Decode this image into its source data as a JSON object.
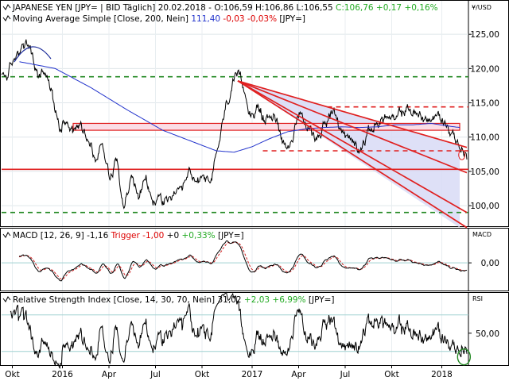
{
  "chart_data": {
    "type": "line",
    "currency_label": "¥/USD",
    "x_ticks": [
      "Okt",
      "2016",
      "Apr",
      "Jul",
      "Okt",
      "2017",
      "Apr",
      "Jul",
      "Okt",
      "2018"
    ],
    "price": {
      "title_parts": [
        {
          "text": "JAPANESE YEN [JPY= | BID Täglich] 20.02.2018 - O:106,59 H:106,86 L:106,55 ",
          "color": "#000000"
        },
        {
          "text": "C:106,76 +0,17 +0,16%",
          "color": "#22aa22"
        }
      ],
      "sma_parts": [
        {
          "text": "Moving Average Simple [Close, 200, Nein] ",
          "color": "#000000"
        },
        {
          "text": "111,40 ",
          "color": "#2233cc"
        },
        {
          "text": "-0,03 -0,03%",
          "color": "#dd0000"
        },
        {
          "text": " [JPY=]",
          "color": "#000000"
        }
      ],
      "ylim": [
        97,
        130
      ],
      "y_ticks": [
        100,
        105,
        110,
        115,
        120,
        125
      ],
      "y_tick_labels": [
        "100,00",
        "105,00",
        "110,00",
        "115,00",
        "120,00",
        "125,00"
      ],
      "anchors": [
        [
          0,
          118.8
        ],
        [
          2,
          119.3
        ],
        [
          4,
          121.8
        ],
        [
          6,
          123.6
        ],
        [
          8,
          122.8
        ],
        [
          10,
          118.8
        ],
        [
          12,
          119.8
        ],
        [
          14,
          116.2
        ],
        [
          16,
          111.6
        ],
        [
          18,
          113.0
        ],
        [
          20,
          111.0
        ],
        [
          22,
          112.0
        ],
        [
          24,
          110.2
        ],
        [
          26,
          106.5
        ],
        [
          28,
          109.0
        ],
        [
          30,
          104.5
        ],
        [
          32,
          106.8
        ],
        [
          34,
          100.2
        ],
        [
          36,
          104.0
        ],
        [
          38,
          101.5
        ],
        [
          40,
          103.5
        ],
        [
          42,
          100.2
        ],
        [
          44,
          101.5
        ],
        [
          46,
          100.0
        ],
        [
          48,
          102.0
        ],
        [
          50,
          101.2
        ],
        [
          52,
          104.5
        ],
        [
          54,
          103.2
        ],
        [
          56,
          105.0
        ],
        [
          58,
          102.5
        ],
        [
          60,
          108.5
        ],
        [
          62,
          113.8
        ],
        [
          64,
          117.8
        ],
        [
          66,
          118.2
        ],
        [
          67,
          117.2
        ],
        [
          69,
          113.8
        ],
        [
          71,
          114.2
        ],
        [
          73,
          112.3
        ],
        [
          75,
          113.5
        ],
        [
          77,
          111.5
        ],
        [
          79,
          108.5
        ],
        [
          81,
          110.8
        ],
        [
          83,
          113.0
        ],
        [
          85,
          111.2
        ],
        [
          87,
          109.8
        ],
        [
          89,
          111.5
        ],
        [
          91,
          113.8
        ],
        [
          93,
          112.3
        ],
        [
          95,
          110.5
        ],
        [
          97,
          109.5
        ],
        [
          99,
          108.6
        ],
        [
          101,
          110.0
        ],
        [
          103,
          111.5
        ],
        [
          105,
          112.5
        ],
        [
          107,
          113.0
        ],
        [
          109,
          112.0
        ],
        [
          111,
          113.5
        ],
        [
          113,
          114.2
        ],
        [
          115,
          113.2
        ],
        [
          117,
          112.8
        ],
        [
          119,
          112.5
        ],
        [
          121,
          113.0
        ],
        [
          123,
          112.0
        ],
        [
          125,
          110.8
        ],
        [
          127,
          108.5
        ],
        [
          128,
          108.4
        ],
        [
          129,
          106.8
        ]
      ],
      "sma_anchors": [
        [
          5,
          121.0
        ],
        [
          15,
          120.0
        ],
        [
          25,
          117.2
        ],
        [
          35,
          114.0
        ],
        [
          45,
          111.0
        ],
        [
          55,
          109.0
        ],
        [
          60,
          108.0
        ],
        [
          65,
          107.8
        ],
        [
          70,
          108.6
        ],
        [
          75,
          109.8
        ],
        [
          80,
          110.8
        ],
        [
          85,
          111.2
        ],
        [
          90,
          111.4
        ],
        [
          95,
          111.5
        ],
        [
          100,
          111.4
        ],
        [
          105,
          111.5
        ],
        [
          110,
          111.8
        ],
        [
          115,
          111.8
        ],
        [
          120,
          112.0
        ],
        [
          125,
          111.6
        ],
        [
          128,
          111.4
        ]
      ],
      "horizontal_lines": [
        {
          "y": 118.8,
          "color": "#228822",
          "style": "dashed"
        },
        {
          "y": 99.0,
          "color": "#228822",
          "style": "dashed"
        },
        {
          "y": 105.3,
          "color": "#e02020",
          "style": "solid"
        },
        {
          "y": 114.4,
          "color": "#e02020",
          "style": "dashed",
          "x_from": 91
        },
        {
          "y": 108.0,
          "color": "#e02020",
          "style": "dashed",
          "x_from": 73
        }
      ],
      "resistance_zone": {
        "y_low": 111.0,
        "y_high": 112.0,
        "x_from": 20,
        "x_to": 128
      },
      "channel": {
        "x0": 66,
        "y0": 118.2,
        "lower_end_y": 96.8,
        "upper_end_y": 108.8,
        "x1": 128
      },
      "trend_lines": [
        [
          [
            66,
            118.2
          ],
          [
            130,
            108.5
          ]
        ],
        [
          [
            66,
            118.2
          ],
          [
            130,
            104.8
          ]
        ],
        [
          [
            66,
            118.2
          ],
          [
            130,
            99.0
          ]
        ],
        [
          [
            66,
            118.2
          ],
          [
            130,
            96.8
          ]
        ]
      ]
    },
    "macd": {
      "label_parts": [
        {
          "text": "MACD [12, 26, 9] -1,16 ",
          "color": "#000000"
        },
        {
          "text": "Trigger -1,00 ",
          "color": "#dd0000"
        },
        {
          "text": "+0 ",
          "color": "#000000"
        },
        {
          "text": "+0,33%",
          "color": "#22aa22"
        },
        {
          "text": " [JPY=]",
          "color": "#000000"
        }
      ],
      "axis_label": "MACD",
      "zero_label": "0,00",
      "ylim": [
        -3,
        3.8
      ]
    },
    "rsi": {
      "label_parts": [
        {
          "text": "Relative Strength Index [Close, 14, 30, 70, Nein] ",
          "color": "#000000"
        },
        {
          "text": "31,02 ",
          "color": "#000000"
        },
        {
          "text": "+2,03 +6,99%",
          "color": "#22aa22"
        },
        {
          "text": " [JPY=]",
          "color": "#000000"
        }
      ],
      "axis_label": "RSI",
      "tick_label": "50,00",
      "ylim": [
        15,
        95
      ],
      "levels": [
        30,
        70
      ]
    }
  }
}
